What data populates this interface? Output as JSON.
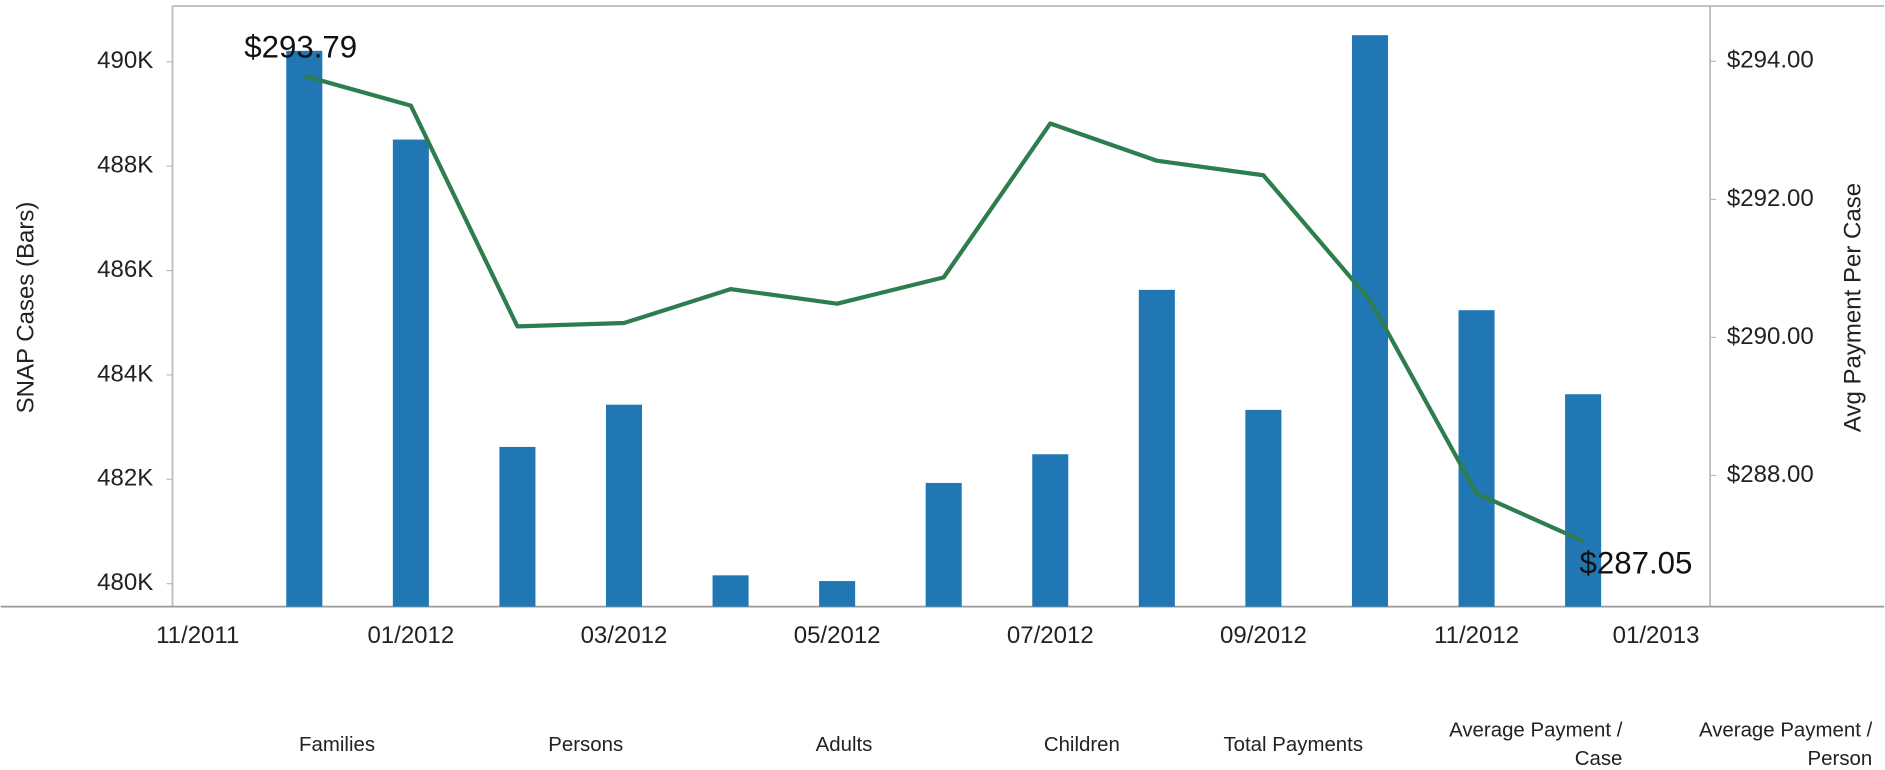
{
  "chart_data": {
    "type": "bar-line",
    "y_label": "SNAP Cases (Bars)",
    "y2_label": "Avg Payment Per Case",
    "x": [
      "12/2011",
      "01/2012",
      "02/2012",
      "03/2012",
      "04/2012",
      "05/2012",
      "06/2012",
      "07/2012",
      "08/2012",
      "09/2012",
      "10/2012",
      "11/2012",
      "12/2012"
    ],
    "xlim": [
      "11/2011",
      "01/2013"
    ],
    "xticks": [
      "11/2011",
      "01/2012",
      "03/2012",
      "05/2012",
      "07/2012",
      "09/2012",
      "11/2012",
      "01/2013"
    ],
    "ylim": [
      479560,
      491000
    ],
    "yticks": [
      {
        "value": 480000,
        "label": "480K"
      },
      {
        "value": 482000,
        "label": "482K"
      },
      {
        "value": 484000,
        "label": "484K"
      },
      {
        "value": 486000,
        "label": "486K"
      },
      {
        "value": 488000,
        "label": "488K"
      },
      {
        "value": 490000,
        "label": "490K"
      }
    ],
    "y2lim": [
      286.1,
      294.75
    ],
    "y2ticks": [
      {
        "value": 288,
        "label": "$288.00"
      },
      {
        "value": 290,
        "label": "$290.00"
      },
      {
        "value": 292,
        "label": "$292.00"
      },
      {
        "value": 294,
        "label": "$294.00"
      }
    ],
    "series": [
      {
        "name": "SNAP Cases",
        "type": "bar",
        "color": "#2077b4",
        "values": [
          490210,
          488510,
          482620,
          483430,
          480160,
          480050,
          481930,
          482480,
          485630,
          483330,
          490510,
          485240,
          483630
        ]
      },
      {
        "name": "Avg Payment Per Case",
        "type": "line",
        "axis": "y2",
        "color": "#2e7d4f",
        "values": [
          293.79,
          293.36,
          290.16,
          290.21,
          290.7,
          290.49,
          290.87,
          293.1,
          292.56,
          292.35,
          290.54,
          287.74,
          287.05
        ],
        "value_labels": [
          "$293.79",
          null,
          null,
          null,
          null,
          null,
          null,
          null,
          null,
          null,
          null,
          null,
          "$287.05"
        ]
      }
    ],
    "measures": [
      "Families",
      "Persons",
      "Adults",
      "Children",
      "Total Payments",
      "Average Payment / Case",
      "Average Payment / Person"
    ]
  }
}
